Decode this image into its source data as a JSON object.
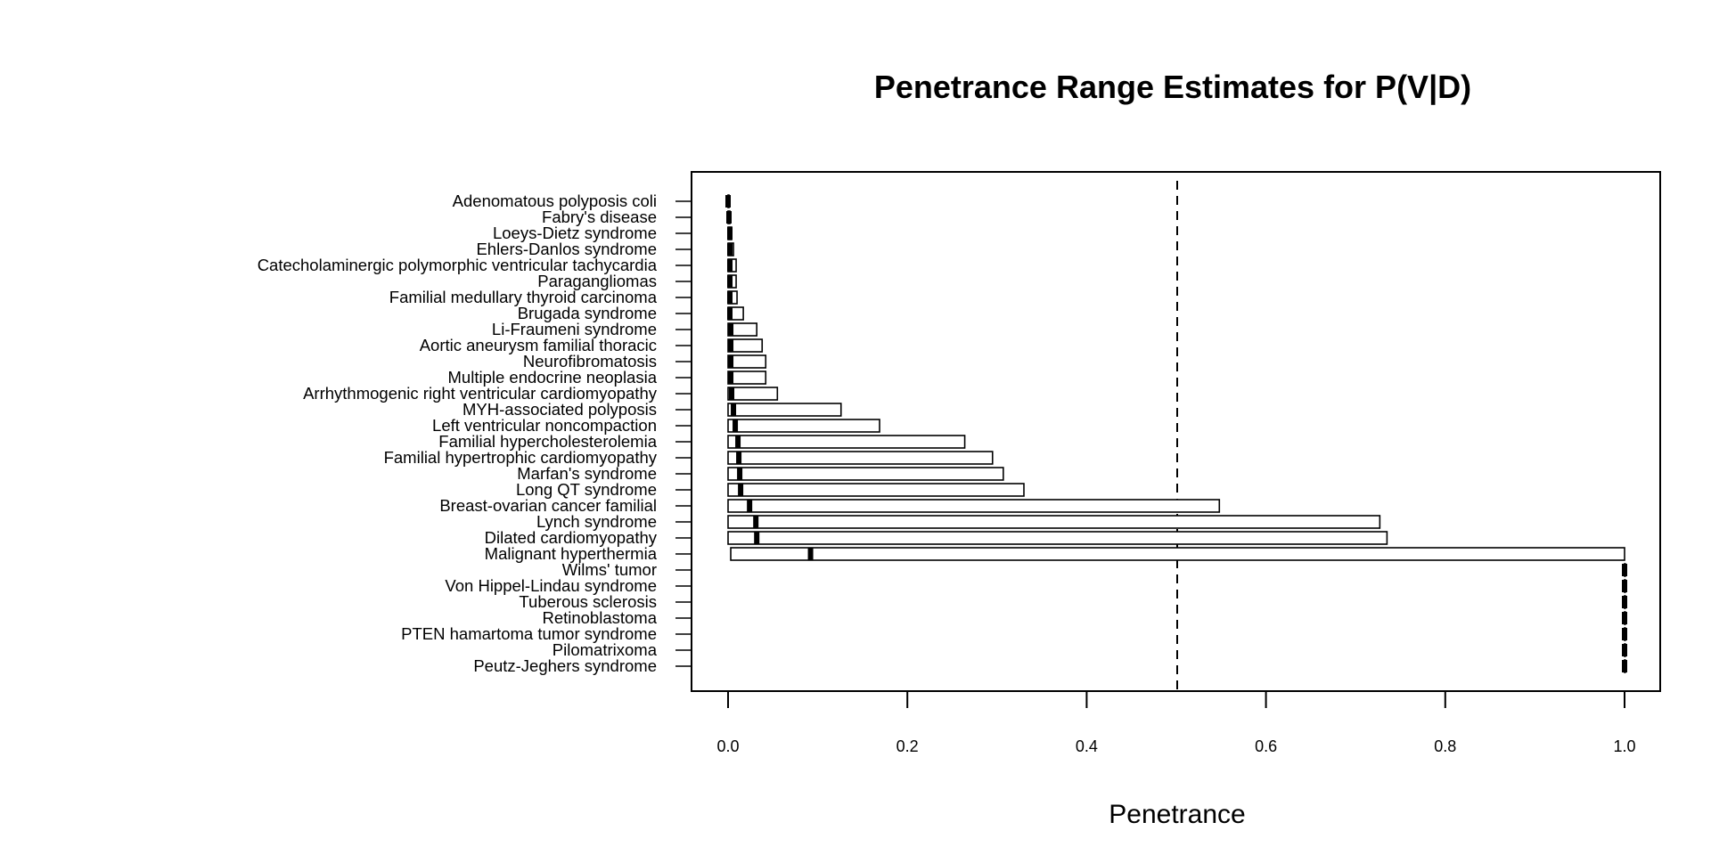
{
  "chart_data": {
    "type": "bar",
    "title": "Penetrance Range Estimates for P(V|D)",
    "xlabel": "Penetrance",
    "ylabel": "",
    "xlim": [
      0,
      1
    ],
    "x_ticks": [
      "0.0",
      "0.2",
      "0.4",
      "0.6",
      "0.8",
      "1.0"
    ],
    "reference_line": {
      "x": 0.5,
      "style": "dashed"
    },
    "categories": [
      "Adenomatous polyposis coli",
      "Fabry's disease",
      "Loeys-Dietz syndrome",
      "Ehlers-Danlos syndrome",
      "Catecholaminergic polymorphic ventricular tachycardia",
      "Paragangliomas",
      "Familial medullary thyroid carcinoma",
      "Brugada syndrome",
      "Li-Fraumeni syndrome",
      "Aortic aneurysm familial thoracic",
      "Neurofibromatosis",
      "Multiple endocrine neoplasia",
      "Arrhythmogenic right ventricular cardiomyopathy",
      "MYH-associated polyposis",
      "Left ventricular noncompaction",
      "Familial hypercholesterolemia",
      "Familial hypertrophic cardiomyopathy",
      "Marfan's syndrome",
      "Long QT syndrome",
      "Breast-ovarian cancer familial",
      "Lynch syndrome",
      "Dilated cardiomyopathy",
      "Malignant hyperthermia",
      "Wilms' tumor",
      "Von Hippel-Lindau syndrome",
      "Tuberous sclerosis",
      "Retinoblastoma",
      "PTEN hamartoma tumor syndrome",
      "Pilomatrixoma",
      "Peutz-Jeghers syndrome"
    ],
    "series": [
      {
        "values": [
          [
            0.0,
            0.001,
            0.0
          ],
          [
            0.0,
            0.002,
            0.001
          ],
          [
            0.0,
            0.004,
            0.002
          ],
          [
            0.0,
            0.006,
            0.002
          ],
          [
            0.0,
            0.009,
            0.002
          ],
          [
            0.0,
            0.009,
            0.002
          ],
          [
            0.0,
            0.01,
            0.002
          ],
          [
            0.0,
            0.017,
            0.002
          ],
          [
            0.0,
            0.032,
            0.003
          ],
          [
            0.0,
            0.038,
            0.003
          ],
          [
            0.0,
            0.042,
            0.003
          ],
          [
            0.0,
            0.042,
            0.003
          ],
          [
            0.0,
            0.055,
            0.004
          ],
          [
            0.0,
            0.126,
            0.006
          ],
          [
            0.0,
            0.169,
            0.008
          ],
          [
            0.0,
            0.264,
            0.011
          ],
          [
            0.0,
            0.295,
            0.012
          ],
          [
            0.0,
            0.307,
            0.013
          ],
          [
            0.0,
            0.33,
            0.014
          ],
          [
            0.0,
            0.548,
            0.024
          ],
          [
            0.0,
            0.727,
            0.031
          ],
          [
            0.0,
            0.735,
            0.032
          ],
          [
            0.003,
            1.0,
            0.092
          ],
          [
            1.0,
            1.0,
            1.0
          ],
          [
            1.0,
            1.0,
            1.0
          ],
          [
            1.0,
            1.0,
            1.0
          ],
          [
            1.0,
            1.0,
            1.0
          ],
          [
            1.0,
            1.0,
            1.0
          ],
          [
            1.0,
            1.0,
            1.0
          ],
          [
            1.0,
            1.0,
            1.0
          ]
        ]
      }
    ]
  }
}
